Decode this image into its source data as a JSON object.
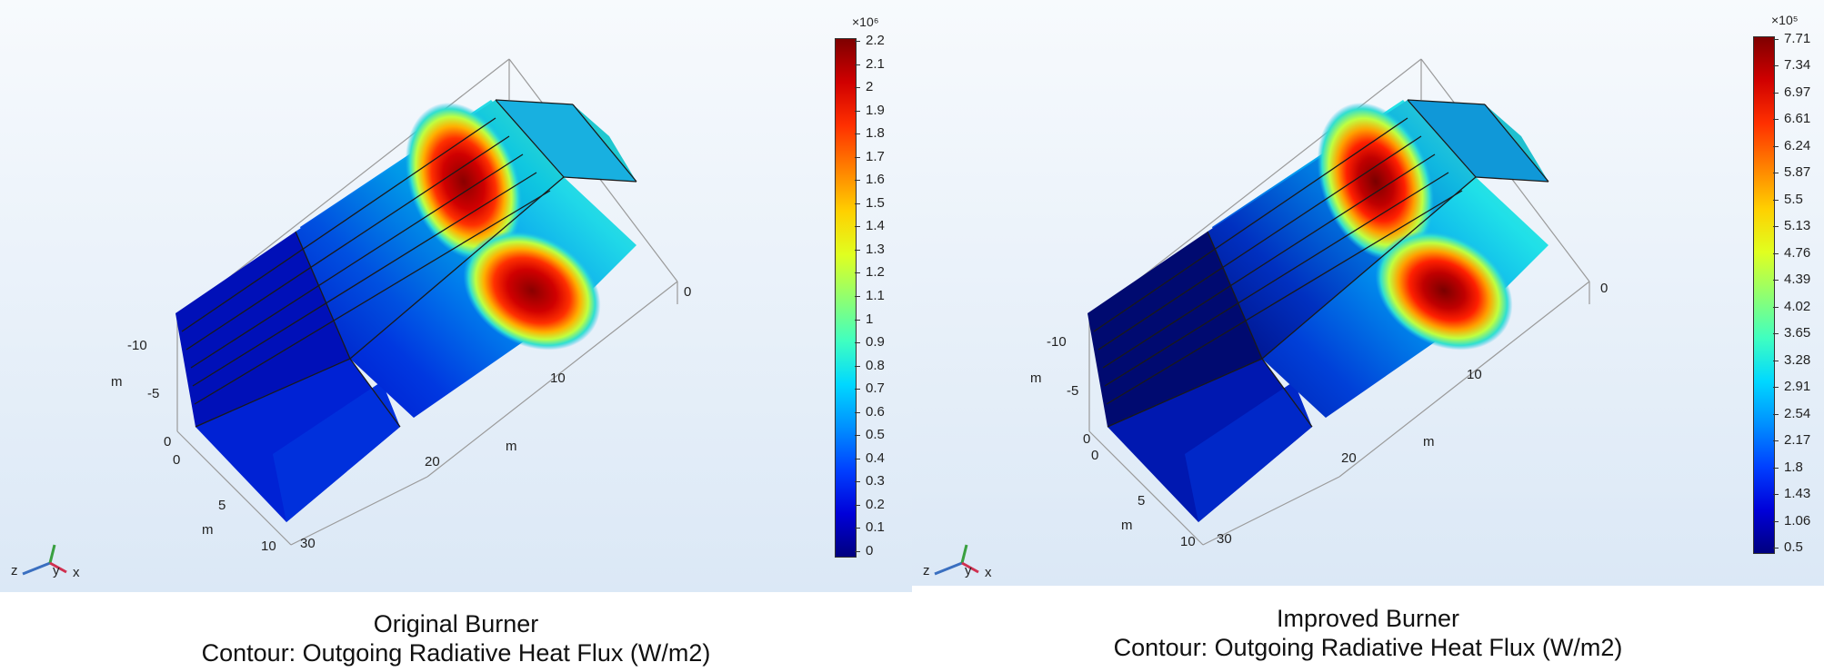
{
  "panels": [
    {
      "id": "original",
      "title": "Original Burner",
      "subtitle": "Contour: Outgoing Radiative Heat Flux (W/m2)",
      "colorbar": {
        "multiplier": "×10⁶",
        "ticks": [
          "2.2",
          "2.1",
          "2",
          "1.9",
          "1.8",
          "1.7",
          "1.6",
          "1.5",
          "1.4",
          "1.3",
          "1.2",
          "1.1",
          "1",
          "0.9",
          "0.8",
          "0.7",
          "0.6",
          "0.5",
          "0.4",
          "0.3",
          "0.2",
          "0.1",
          "0"
        ]
      },
      "axis_ticks": {
        "y": [
          "-10",
          "-5",
          "0"
        ],
        "x": [
          "0",
          "5",
          "10"
        ],
        "z": [
          "30",
          "20",
          "10",
          "0"
        ]
      },
      "axis_units": [
        "m",
        "m",
        "m"
      ],
      "triad": [
        "z",
        "y",
        "x"
      ]
    },
    {
      "id": "improved",
      "title": "Improved Burner",
      "subtitle": "Contour: Outgoing Radiative Heat Flux (W/m2)",
      "colorbar": {
        "multiplier": "×10⁵",
        "ticks": [
          "7.71",
          "7.34",
          "6.97",
          "6.61",
          "6.24",
          "5.87",
          "5.5",
          "5.13",
          "4.76",
          "4.39",
          "4.02",
          "3.65",
          "3.28",
          "2.91",
          "2.54",
          "2.17",
          "1.8",
          "1.43",
          "1.06",
          "0.5"
        ]
      },
      "axis_ticks": {
        "y": [
          "-10",
          "-5",
          "0"
        ],
        "x": [
          "0",
          "5",
          "10"
        ],
        "z": [
          "30",
          "20",
          "10",
          "0"
        ]
      },
      "axis_units": [
        "m",
        "m",
        "m"
      ],
      "triad": [
        "z",
        "y",
        "x"
      ]
    }
  ],
  "colors": {
    "jet": [
      "#00007f",
      "#0000d9",
      "#0040ff",
      "#0090ff",
      "#00d8ff",
      "#40ffc0",
      "#90ff70",
      "#e0ff20",
      "#ffd000",
      "#ff8000",
      "#ff3000",
      "#d00000",
      "#7f0000"
    ]
  }
}
